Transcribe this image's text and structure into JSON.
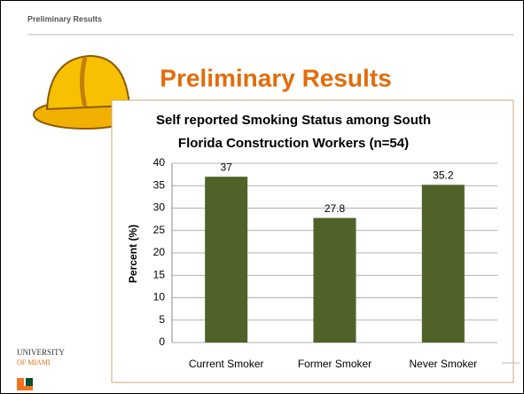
{
  "header": {
    "label": "Preliminary Results"
  },
  "slide_title": "Preliminary Results",
  "logo": {
    "line1": "UNIVERSITY",
    "line2": "OF MIAMI"
  },
  "chart_data": {
    "type": "bar",
    "title": "Self reported Smoking Status among South Florida Construction Workers (n=54)",
    "y_label": "Percent (%)",
    "categories": [
      "Current Smoker",
      "Former Smoker",
      "Never Smoker"
    ],
    "values": [
      37,
      27.8,
      35.2
    ],
    "color": "#4f6228",
    "ylim": [
      0,
      40
    ],
    "yticks": [
      0,
      5,
      10,
      15,
      20,
      25,
      30,
      35,
      40
    ],
    "grid": true
  }
}
